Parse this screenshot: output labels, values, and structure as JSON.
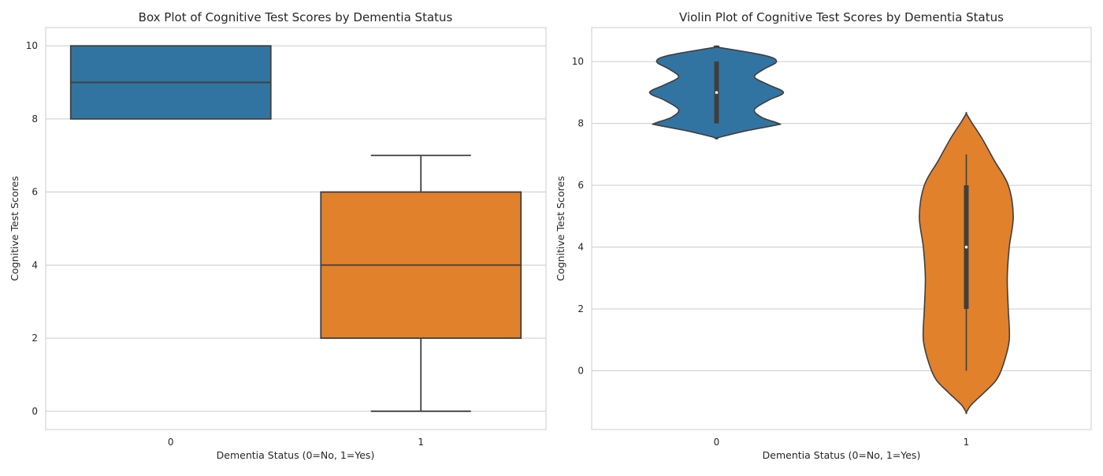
{
  "chart_data": [
    {
      "type": "box",
      "title": "Box Plot of Cognitive Test Scores by Dementia Status",
      "xlabel": "Dementia Status (0=No, 1=Yes)",
      "ylabel": "Cognitive Test Scores",
      "categories": [
        "0",
        "1"
      ],
      "ylim": [
        -0.5,
        10.5
      ],
      "yticks": [
        0,
        2,
        4,
        6,
        8,
        10
      ],
      "grid": "horizontal",
      "colors": [
        "#3274a1",
        "#e1812c"
      ],
      "boxes": [
        {
          "category": "0",
          "min": 8,
          "q1": 8,
          "median": 9,
          "q3": 10,
          "max": 10
        },
        {
          "category": "1",
          "min": 0,
          "q1": 2,
          "median": 4,
          "q3": 6,
          "max": 7
        }
      ]
    },
    {
      "type": "violin",
      "title": "Violin Plot of Cognitive Test Scores by Dementia Status",
      "xlabel": "Dementia Status (0=No, 1=Yes)",
      "ylabel": "Cognitive Test Scores",
      "categories": [
        "0",
        "1"
      ],
      "ylim": [
        -1.9,
        11.1
      ],
      "yticks": [
        0,
        2,
        4,
        6,
        8,
        10
      ],
      "grid": "horizontal",
      "colors": [
        "#3274a1",
        "#e1812c"
      ],
      "violins": [
        {
          "category": "0",
          "min": 8,
          "q1": 8,
          "median": 9,
          "q3": 10,
          "max": 10,
          "density": [
            [
              7.53,
              0.0
            ],
            [
              7.75,
              0.28
            ],
            [
              7.95,
              0.6
            ],
            [
              8.0,
              0.62
            ],
            [
              8.2,
              0.45
            ],
            [
              8.45,
              0.38
            ],
            [
              8.75,
              0.52
            ],
            [
              9.0,
              0.67
            ],
            [
              9.25,
              0.52
            ],
            [
              9.5,
              0.38
            ],
            [
              9.75,
              0.47
            ],
            [
              10.0,
              0.6
            ],
            [
              10.2,
              0.48
            ],
            [
              10.47,
              0.0
            ]
          ]
        },
        {
          "category": "1",
          "min": 0,
          "q1": 2,
          "median": 4,
          "q3": 6,
          "max": 7,
          "density": [
            [
              -1.35,
              0.0
            ],
            [
              -1.1,
              0.05
            ],
            [
              -0.7,
              0.18
            ],
            [
              -0.3,
              0.3
            ],
            [
              0.2,
              0.37
            ],
            [
              1.0,
              0.43
            ],
            [
              2.0,
              0.42
            ],
            [
              3.0,
              0.41
            ],
            [
              4.0,
              0.43
            ],
            [
              5.0,
              0.47
            ],
            [
              6.0,
              0.42
            ],
            [
              6.8,
              0.28
            ],
            [
              7.5,
              0.16
            ],
            [
              8.05,
              0.05
            ],
            [
              8.32,
              0.0
            ]
          ]
        }
      ]
    }
  ]
}
